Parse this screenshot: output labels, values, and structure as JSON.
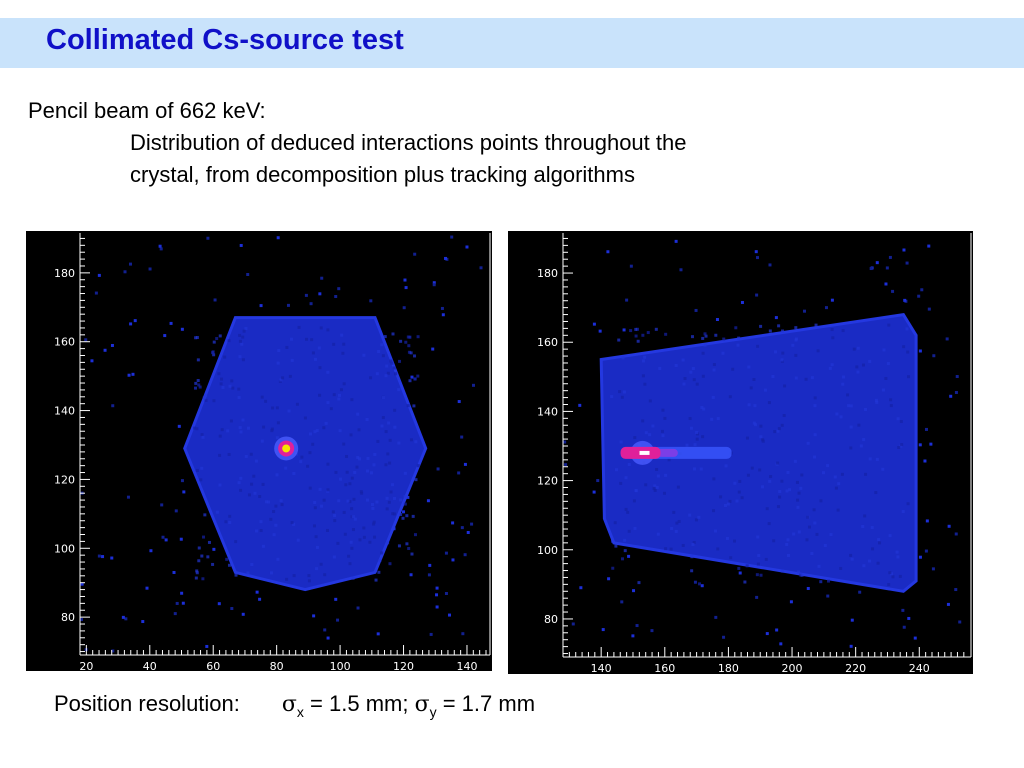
{
  "slide": {
    "title": "Collimated Cs-source test",
    "intro_line": "Pencil beam of 662 keV:",
    "description_line1": "Distribution of deduced interactions points throughout the",
    "description_line2": "crystal, from decomposition plus tracking algorithms",
    "footer": {
      "label": "Position resolution:",
      "sigma_symbol": "σ",
      "x_subscript": "x",
      "x_value": " = 1.5 mm; ",
      "y_subscript": "y",
      "y_value": " = 1.7 mm"
    }
  },
  "colors": {
    "title_bar": "#c9e3fb",
    "title_text": "#1010c8",
    "plot_background": "#000000",
    "crystal_fill": "#1a2bc4",
    "hotspot_magenta": "#e0209a",
    "hotspot_yellow": "#f5e400"
  },
  "chart_data": [
    {
      "type": "heatmap",
      "view": "front",
      "xlim": [
        18,
        146
      ],
      "ylim": [
        69,
        191
      ],
      "x_ticks": [
        20,
        40,
        60,
        80,
        100,
        120,
        140
      ],
      "y_ticks": [
        80,
        100,
        120,
        140,
        160,
        180
      ],
      "crystal_outline": [
        [
          89,
          167
        ],
        [
          111,
          167
        ],
        [
          127,
          129
        ],
        [
          111,
          93
        ],
        [
          89,
          88
        ],
        [
          67,
          93
        ],
        [
          51,
          129
        ],
        [
          67,
          167
        ]
      ],
      "hotspot": {
        "x": 83,
        "y": 129
      }
    },
    {
      "type": "heatmap",
      "view": "side",
      "xlim": [
        128,
        255
      ],
      "ylim": [
        69,
        191
      ],
      "x_ticks": [
        140,
        160,
        180,
        200,
        220,
        240
      ],
      "y_ticks": [
        80,
        100,
        120,
        140,
        160,
        180
      ],
      "crystal_outline": [
        [
          140,
          155
        ],
        [
          235,
          168
        ],
        [
          239,
          162
        ],
        [
          239,
          91
        ],
        [
          235,
          88
        ],
        [
          144,
          102
        ],
        [
          141,
          109
        ]
      ],
      "beam_track": {
        "x_start": 148,
        "x_end": 181,
        "y": 128
      },
      "hotspot": {
        "x": 153,
        "y": 128
      }
    }
  ]
}
